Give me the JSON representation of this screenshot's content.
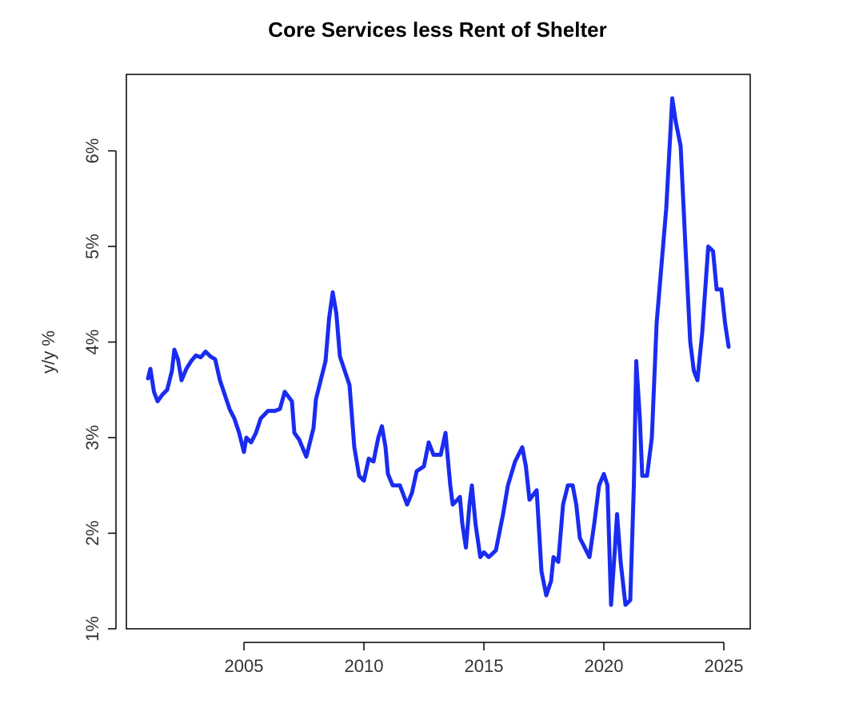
{
  "chart_data": {
    "type": "line",
    "title": "Core Services less Rent of Shelter",
    "xlabel": "",
    "ylabel": "y/y %",
    "xlim": [
      2000.1,
      2026.1
    ],
    "ylim": [
      1.0,
      6.8
    ],
    "x_ticks": [
      {
        "value": 2005,
        "label": "2005"
      },
      {
        "value": 2010,
        "label": "2010"
      },
      {
        "value": 2015,
        "label": "2015"
      },
      {
        "value": 2020,
        "label": "2020"
      },
      {
        "value": 2025,
        "label": "2025"
      }
    ],
    "y_ticks": [
      {
        "value": 1,
        "label": "1%"
      },
      {
        "value": 2,
        "label": "2%"
      },
      {
        "value": 3,
        "label": "3%"
      },
      {
        "value": 4,
        "label": "4%"
      },
      {
        "value": 5,
        "label": "5%"
      },
      {
        "value": 6,
        "label": "6%"
      }
    ],
    "grid": false,
    "legend": "none",
    "series": [
      {
        "color": "#1a2cf0",
        "points": [
          [
            2001.0,
            3.62
          ],
          [
            2001.1,
            3.72
          ],
          [
            2001.25,
            3.48
          ],
          [
            2001.4,
            3.38
          ],
          [
            2001.6,
            3.45
          ],
          [
            2001.8,
            3.5
          ],
          [
            2002.0,
            3.7
          ],
          [
            2002.1,
            3.92
          ],
          [
            2002.25,
            3.82
          ],
          [
            2002.4,
            3.6
          ],
          [
            2002.6,
            3.72
          ],
          [
            2002.8,
            3.8
          ],
          [
            2003.0,
            3.86
          ],
          [
            2003.2,
            3.84
          ],
          [
            2003.4,
            3.9
          ],
          [
            2003.6,
            3.85
          ],
          [
            2003.8,
            3.82
          ],
          [
            2004.0,
            3.6
          ],
          [
            2004.2,
            3.45
          ],
          [
            2004.4,
            3.3
          ],
          [
            2004.6,
            3.2
          ],
          [
            2004.8,
            3.05
          ],
          [
            2005.0,
            2.85
          ],
          [
            2005.1,
            3.0
          ],
          [
            2005.3,
            2.95
          ],
          [
            2005.5,
            3.05
          ],
          [
            2005.7,
            3.2
          ],
          [
            2006.0,
            3.28
          ],
          [
            2006.3,
            3.28
          ],
          [
            2006.5,
            3.3
          ],
          [
            2006.7,
            3.48
          ],
          [
            2007.0,
            3.38
          ],
          [
            2007.1,
            3.05
          ],
          [
            2007.3,
            2.98
          ],
          [
            2007.6,
            2.8
          ],
          [
            2007.9,
            3.1
          ],
          [
            2008.0,
            3.4
          ],
          [
            2008.2,
            3.6
          ],
          [
            2008.4,
            3.8
          ],
          [
            2008.55,
            4.25
          ],
          [
            2008.7,
            4.52
          ],
          [
            2008.85,
            4.3
          ],
          [
            2009.0,
            3.85
          ],
          [
            2009.2,
            3.7
          ],
          [
            2009.4,
            3.55
          ],
          [
            2009.6,
            2.9
          ],
          [
            2009.8,
            2.6
          ],
          [
            2010.0,
            2.55
          ],
          [
            2010.2,
            2.78
          ],
          [
            2010.4,
            2.75
          ],
          [
            2010.6,
            3.0
          ],
          [
            2010.75,
            3.12
          ],
          [
            2010.9,
            2.9
          ],
          [
            2011.0,
            2.62
          ],
          [
            2011.2,
            2.5
          ],
          [
            2011.5,
            2.5
          ],
          [
            2011.8,
            2.3
          ],
          [
            2012.0,
            2.42
          ],
          [
            2012.2,
            2.65
          ],
          [
            2012.5,
            2.7
          ],
          [
            2012.7,
            2.95
          ],
          [
            2012.9,
            2.82
          ],
          [
            2013.2,
            2.82
          ],
          [
            2013.4,
            3.05
          ],
          [
            2013.6,
            2.5
          ],
          [
            2013.7,
            2.3
          ],
          [
            2013.9,
            2.35
          ],
          [
            2014.0,
            2.38
          ],
          [
            2014.1,
            2.1
          ],
          [
            2014.25,
            1.85
          ],
          [
            2014.4,
            2.3
          ],
          [
            2014.5,
            2.5
          ],
          [
            2014.65,
            2.1
          ],
          [
            2014.85,
            1.75
          ],
          [
            2015.0,
            1.8
          ],
          [
            2015.2,
            1.75
          ],
          [
            2015.5,
            1.82
          ],
          [
            2015.8,
            2.2
          ],
          [
            2016.0,
            2.5
          ],
          [
            2016.3,
            2.75
          ],
          [
            2016.6,
            2.9
          ],
          [
            2016.75,
            2.7
          ],
          [
            2016.9,
            2.35
          ],
          [
            2017.2,
            2.45
          ],
          [
            2017.4,
            1.6
          ],
          [
            2017.6,
            1.35
          ],
          [
            2017.8,
            1.5
          ],
          [
            2017.9,
            1.75
          ],
          [
            2018.1,
            1.7
          ],
          [
            2018.3,
            2.3
          ],
          [
            2018.5,
            2.5
          ],
          [
            2018.7,
            2.5
          ],
          [
            2018.85,
            2.3
          ],
          [
            2019.0,
            1.95
          ],
          [
            2019.2,
            1.85
          ],
          [
            2019.4,
            1.75
          ],
          [
            2019.6,
            2.1
          ],
          [
            2019.8,
            2.5
          ],
          [
            2020.0,
            2.62
          ],
          [
            2020.15,
            2.5
          ],
          [
            2020.3,
            1.25
          ],
          [
            2020.45,
            1.8
          ],
          [
            2020.55,
            2.2
          ],
          [
            2020.7,
            1.7
          ],
          [
            2020.9,
            1.25
          ],
          [
            2021.1,
            1.3
          ],
          [
            2021.25,
            2.5
          ],
          [
            2021.35,
            3.8
          ],
          [
            2021.5,
            3.2
          ],
          [
            2021.6,
            2.6
          ],
          [
            2021.8,
            2.6
          ],
          [
            2022.0,
            3.0
          ],
          [
            2022.2,
            4.2
          ],
          [
            2022.4,
            4.8
          ],
          [
            2022.6,
            5.4
          ],
          [
            2022.85,
            6.55
          ],
          [
            2023.0,
            6.3
          ],
          [
            2023.2,
            6.05
          ],
          [
            2023.4,
            5.0
          ],
          [
            2023.6,
            4.0
          ],
          [
            2023.75,
            3.7
          ],
          [
            2023.9,
            3.6
          ],
          [
            2024.1,
            4.1
          ],
          [
            2024.35,
            5.0
          ],
          [
            2024.55,
            4.95
          ],
          [
            2024.7,
            4.55
          ],
          [
            2024.9,
            4.55
          ],
          [
            2025.05,
            4.2
          ],
          [
            2025.2,
            3.95
          ]
        ]
      }
    ]
  }
}
